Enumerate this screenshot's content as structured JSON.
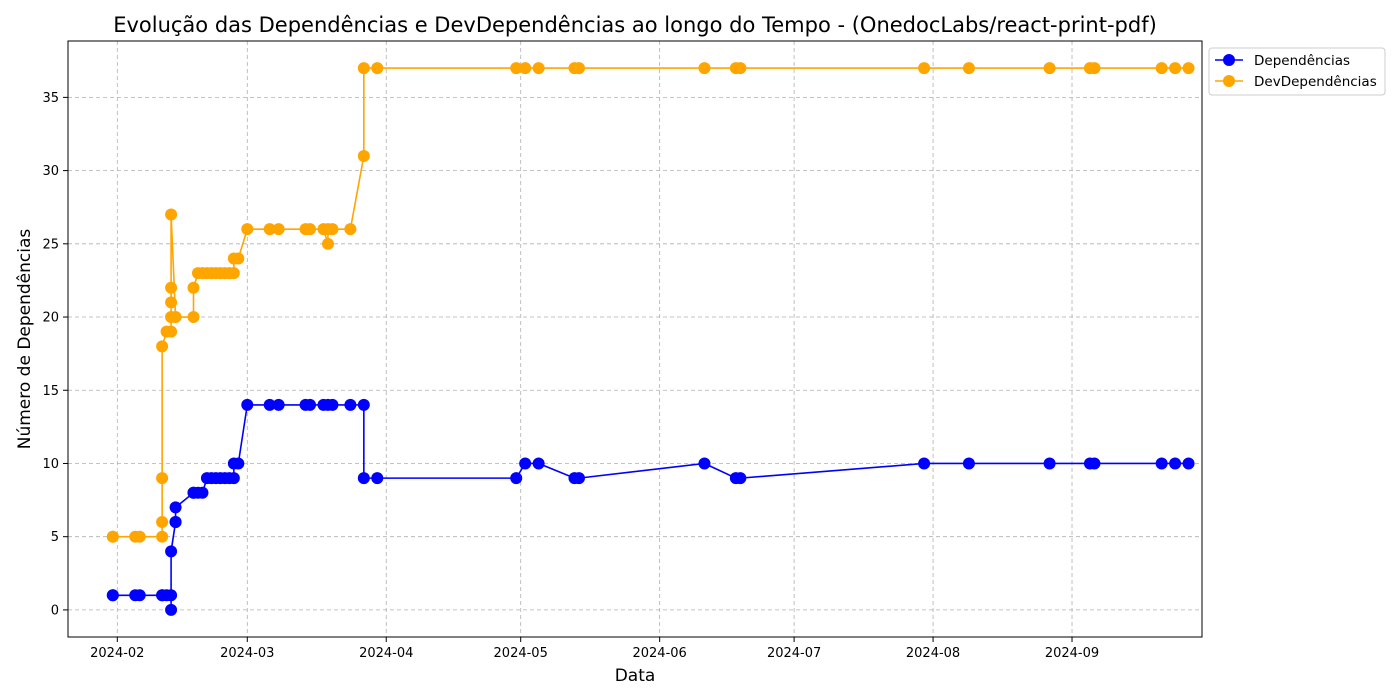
{
  "chart_data": {
    "type": "line",
    "title": "Evolução das Dependências e DevDependências ao longo do Tempo - (OnedocLabs/react-print-pdf)",
    "xlabel": "Data",
    "ylabel": "Número de Dependências",
    "x_ticks": [
      "2024-02",
      "2024-03",
      "2024-04",
      "2024-05",
      "2024-06",
      "2024-07",
      "2024-08",
      "2024-09"
    ],
    "y_ticks": [
      0,
      5,
      10,
      15,
      20,
      25,
      30,
      35
    ],
    "xlim": [
      "2024-01-21",
      "2024-09-30"
    ],
    "ylim": [
      -1.85,
      38.85
    ],
    "grid": true,
    "legend_position": "top-right outside",
    "series": [
      {
        "name": "Dependências",
        "color": "#0000ff",
        "points": [
          [
            "2024-01-31",
            1
          ],
          [
            "2024-01-31",
            1
          ],
          [
            "2024-02-05",
            1
          ],
          [
            "2024-02-06",
            1
          ],
          [
            "2024-02-11",
            1
          ],
          [
            "2024-02-11",
            1
          ],
          [
            "2024-02-12",
            1
          ],
          [
            "2024-02-13",
            1
          ],
          [
            "2024-02-13",
            0
          ],
          [
            "2024-02-13",
            4
          ],
          [
            "2024-02-14",
            6
          ],
          [
            "2024-02-14",
            6
          ],
          [
            "2024-02-14",
            7
          ],
          [
            "2024-02-18",
            8
          ],
          [
            "2024-02-18",
            8
          ],
          [
            "2024-02-19",
            8
          ],
          [
            "2024-02-20",
            8
          ],
          [
            "2024-02-21",
            9
          ],
          [
            "2024-02-22",
            9
          ],
          [
            "2024-02-23",
            9
          ],
          [
            "2024-02-24",
            9
          ],
          [
            "2024-02-25",
            9
          ],
          [
            "2024-02-26",
            9
          ],
          [
            "2024-02-27",
            9
          ],
          [
            "2024-02-27",
            10
          ],
          [
            "2024-02-28",
            10
          ],
          [
            "2024-03-01",
            14
          ],
          [
            "2024-03-06",
            14
          ],
          [
            "2024-03-08",
            14
          ],
          [
            "2024-03-14",
            14
          ],
          [
            "2024-03-15",
            14
          ],
          [
            "2024-03-18",
            14
          ],
          [
            "2024-03-19",
            14
          ],
          [
            "2024-03-20",
            14
          ],
          [
            "2024-03-24",
            14
          ],
          [
            "2024-03-27",
            14
          ],
          [
            "2024-03-27",
            9
          ],
          [
            "2024-03-30",
            9
          ],
          [
            "2024-04-30",
            9
          ],
          [
            "2024-05-02",
            10
          ],
          [
            "2024-05-05",
            10
          ],
          [
            "2024-05-13",
            9
          ],
          [
            "2024-05-14",
            9
          ],
          [
            "2024-06-11",
            10
          ],
          [
            "2024-06-18",
            9
          ],
          [
            "2024-06-19",
            9
          ],
          [
            "2024-07-30",
            10
          ],
          [
            "2024-08-09",
            10
          ],
          [
            "2024-08-27",
            10
          ],
          [
            "2024-09-05",
            10
          ],
          [
            "2024-09-06",
            10
          ],
          [
            "2024-09-21",
            10
          ],
          [
            "2024-09-24",
            10
          ],
          [
            "2024-09-27",
            10
          ]
        ]
      },
      {
        "name": "DevDependências",
        "color": "#ffa500",
        "points": [
          [
            "2024-01-31",
            5
          ],
          [
            "2024-01-31",
            5
          ],
          [
            "2024-02-05",
            5
          ],
          [
            "2024-02-06",
            5
          ],
          [
            "2024-02-11",
            5
          ],
          [
            "2024-02-11",
            6
          ],
          [
            "2024-02-11",
            9
          ],
          [
            "2024-02-11",
            18
          ],
          [
            "2024-02-12",
            19
          ],
          [
            "2024-02-13",
            19
          ],
          [
            "2024-02-13",
            20
          ],
          [
            "2024-02-13",
            21
          ],
          [
            "2024-02-13",
            22
          ],
          [
            "2024-02-13",
            27
          ],
          [
            "2024-02-14",
            20
          ],
          [
            "2024-02-18",
            20
          ],
          [
            "2024-02-18",
            22
          ],
          [
            "2024-02-19",
            23
          ],
          [
            "2024-02-20",
            23
          ],
          [
            "2024-02-21",
            23
          ],
          [
            "2024-02-22",
            23
          ],
          [
            "2024-02-23",
            23
          ],
          [
            "2024-02-24",
            23
          ],
          [
            "2024-02-25",
            23
          ],
          [
            "2024-02-26",
            23
          ],
          [
            "2024-02-27",
            23
          ],
          [
            "2024-02-27",
            24
          ],
          [
            "2024-02-28",
            24
          ],
          [
            "2024-03-01",
            26
          ],
          [
            "2024-03-06",
            26
          ],
          [
            "2024-03-08",
            26
          ],
          [
            "2024-03-14",
            26
          ],
          [
            "2024-03-15",
            26
          ],
          [
            "2024-03-18",
            26
          ],
          [
            "2024-03-19",
            25
          ],
          [
            "2024-03-19",
            26
          ],
          [
            "2024-03-20",
            26
          ],
          [
            "2024-03-24",
            26
          ],
          [
            "2024-03-27",
            31
          ],
          [
            "2024-03-27",
            37
          ],
          [
            "2024-03-30",
            37
          ],
          [
            "2024-04-30",
            37
          ],
          [
            "2024-05-02",
            37
          ],
          [
            "2024-05-05",
            37
          ],
          [
            "2024-05-13",
            37
          ],
          [
            "2024-05-14",
            37
          ],
          [
            "2024-06-11",
            37
          ],
          [
            "2024-06-18",
            37
          ],
          [
            "2024-06-19",
            37
          ],
          [
            "2024-07-30",
            37
          ],
          [
            "2024-08-09",
            37
          ],
          [
            "2024-08-27",
            37
          ],
          [
            "2024-09-05",
            37
          ],
          [
            "2024-09-06",
            37
          ],
          [
            "2024-09-21",
            37
          ],
          [
            "2024-09-24",
            37
          ],
          [
            "2024-09-27",
            37
          ]
        ]
      }
    ]
  }
}
